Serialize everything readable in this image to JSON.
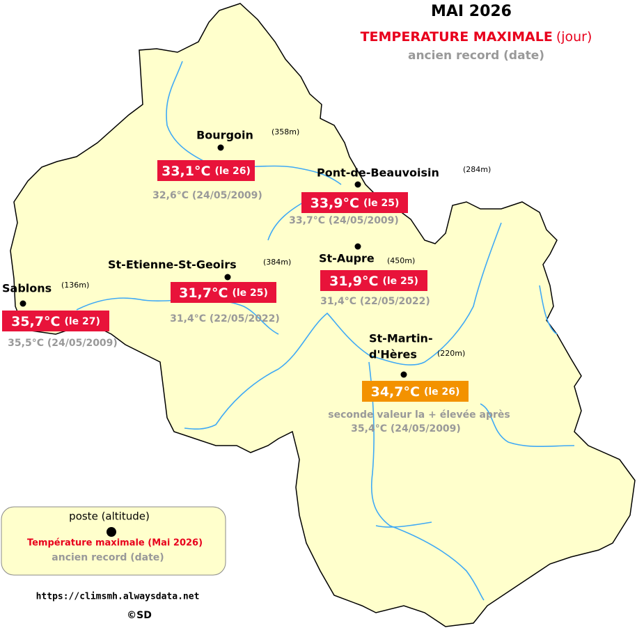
{
  "header": {
    "title": "MAI 2026",
    "subtitle": "TEMPERATURE MAXIMALE",
    "subtitle_note": "(jour)",
    "record_label": "ancien record (date)"
  },
  "stations": [
    {
      "name": "Bourgoin",
      "altitude": "(358m)",
      "value": "33,1°C",
      "day": "(le 26)",
      "record": "32,6°C (24/05/2009)",
      "box_color": "#e8133a"
    },
    {
      "name": "Pont-de-Beauvoisin",
      "altitude": "(284m)",
      "value": "33,9°C",
      "day": "(le 25)",
      "record": "33,7°C (24/05/2009)",
      "box_color": "#e8133a"
    },
    {
      "name": "St-Aupre",
      "altitude": "(450m)",
      "value": "31,9°C",
      "day": "(le 25)",
      "record": "31,4°C (22/05/2022)",
      "box_color": "#e8133a"
    },
    {
      "name": "St-Etienne-St-Geoirs",
      "altitude": "(384m)",
      "value": "31,7°C",
      "day": "(le 25)",
      "record": "31,4°C (22/05/2022)",
      "box_color": "#e8133a"
    },
    {
      "name": "Sablons",
      "altitude": "(136m)",
      "value": "35,7°C",
      "day": "(le 27)",
      "record": "35,5°C (24/05/2009)",
      "box_color": "#e8133a"
    },
    {
      "name": [
        "St-Martin-",
        "d'Hères"
      ],
      "altitude": "(220m)",
      "value": "34,7°C",
      "day": "(le 26)",
      "note": "seconde valeur la + élevée après",
      "record": "35,4°C (24/05/2009)",
      "box_color": "#f39200"
    }
  ],
  "legend": {
    "station": "poste (altitude)",
    "temperature": "Température maximale (Mai 2026)",
    "record": "ancien record (date)"
  },
  "footer": {
    "url": "https://climsmh.alwaysdata.net",
    "credit": "©SD"
  }
}
